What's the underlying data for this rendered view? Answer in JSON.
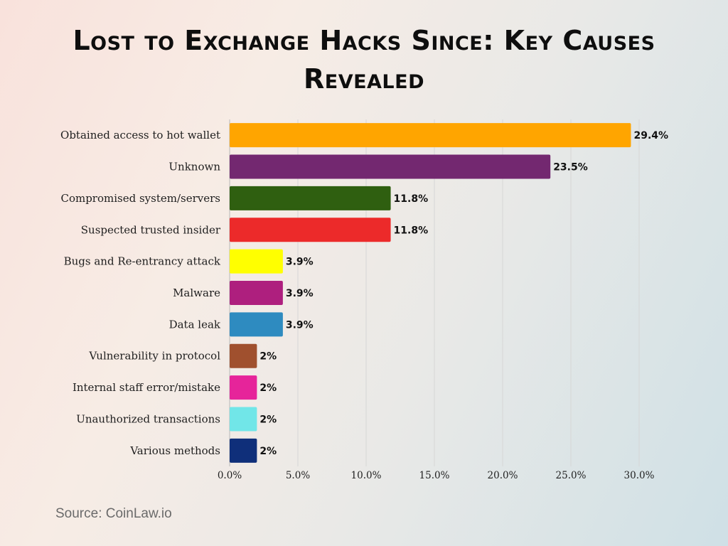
{
  "chart_data": {
    "type": "bar",
    "orientation": "horizontal",
    "title_lines": [
      "Lost to Exchange Hacks Since: Key Causes",
      "Revealed"
    ],
    "categories": [
      "Obtained access to hot wallet",
      "Unknown",
      "Compromised system/servers",
      "Suspected trusted insider",
      "Bugs and Re-entrancy attack",
      "Malware",
      "Data leak",
      "Vulnerability in protocol",
      "Internal staff error/mistake",
      "Unauthorized transactions",
      "Various methods"
    ],
    "values": [
      29.4,
      23.5,
      11.8,
      11.8,
      3.9,
      3.9,
      3.9,
      2,
      2,
      2,
      2
    ],
    "value_labels": [
      "29.4%",
      "23.5%",
      "11.8%",
      "11.8%",
      "3.9%",
      "3.9%",
      "3.9%",
      "2%",
      "2%",
      "2%",
      "2%"
    ],
    "colors": [
      "#FFA500",
      "#732870",
      "#2F5F10",
      "#EC2A2A",
      "#FFFF00",
      "#AE1F7E",
      "#2E8BC0",
      "#A0502E",
      "#E6249A",
      "#71E6E8",
      "#0F2F7A"
    ],
    "xlim": [
      0,
      30
    ],
    "x_ticks": [
      0,
      5,
      10,
      15,
      20,
      25,
      30
    ],
    "x_tick_labels": [
      "0.0%",
      "5.0%",
      "10.0%",
      "15.0%",
      "20.0%",
      "25.0%",
      "30.0%"
    ],
    "xlabel": "",
    "ylabel": "",
    "grid": true,
    "legend": "none"
  },
  "source_text": "Source: CoinLaw.io"
}
